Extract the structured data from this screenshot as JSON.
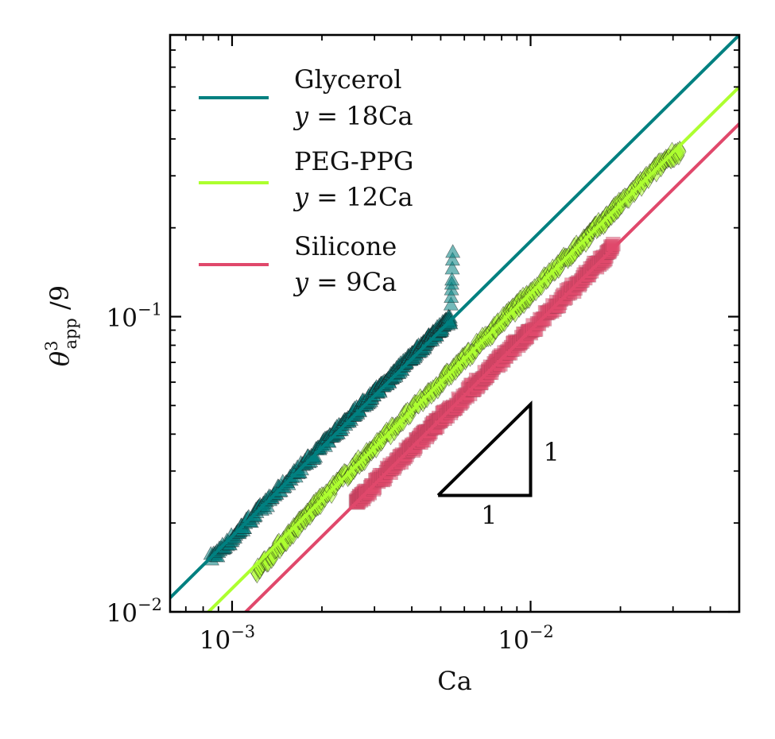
{
  "chart_data": {
    "type": "scatter",
    "title": "",
    "xlabel": "Ca",
    "ylabel": {
      "symbol": "θ",
      "sup": "3",
      "sub": "app",
      "suffix": " /9"
    },
    "xscale": "log",
    "yscale": "log",
    "xlim": [
      0.00062,
      0.05
    ],
    "ylim": [
      0.01,
      0.9
    ],
    "xticks": [
      {
        "value": 0.001,
        "base": "10",
        "exp": "−3"
      },
      {
        "value": 0.01,
        "base": "10",
        "exp": "−2"
      }
    ],
    "yticks": [
      {
        "value": 0.01,
        "base": "10",
        "exp": "−2"
      },
      {
        "value": 0.1,
        "base": "10",
        "exp": "−1"
      }
    ],
    "grid": false,
    "legend_position": "top-left",
    "series": [
      {
        "name": "Glycerol",
        "fit_label": {
          "y": "y",
          "eq": " = 18Ca"
        },
        "fit_coefficient": 18,
        "color": "#008080",
        "marker": "triangle",
        "x_range": [
          0.00085,
          0.0055
        ],
        "points": [
          [
            0.00085,
            0.0153
          ],
          [
            0.0009,
            0.016
          ],
          [
            0.00095,
            0.0168
          ],
          [
            0.001,
            0.0178
          ],
          [
            0.00105,
            0.0187
          ],
          [
            0.0011,
            0.0197
          ],
          [
            0.00118,
            0.0213
          ],
          [
            0.00125,
            0.0225
          ],
          [
            0.00132,
            0.0237
          ],
          [
            0.0014,
            0.0253
          ],
          [
            0.0015,
            0.0272
          ],
          [
            0.0016,
            0.029
          ],
          [
            0.0017,
            0.031
          ],
          [
            0.0018,
            0.0328
          ],
          [
            0.0019,
            0.0345
          ],
          [
            0.002,
            0.0365
          ],
          [
            0.0021,
            0.0385
          ],
          [
            0.0022,
            0.0405
          ],
          [
            0.0023,
            0.0423
          ],
          [
            0.0024,
            0.0443
          ],
          [
            0.0025,
            0.046
          ],
          [
            0.0026,
            0.048
          ],
          [
            0.0027,
            0.0498
          ],
          [
            0.0028,
            0.0515
          ],
          [
            0.0029,
            0.0533
          ],
          [
            0.003,
            0.0552
          ],
          [
            0.0031,
            0.057
          ],
          [
            0.0032,
            0.0588
          ],
          [
            0.0033,
            0.0605
          ],
          [
            0.0034,
            0.0625
          ],
          [
            0.0035,
            0.0643
          ],
          [
            0.0036,
            0.0662
          ],
          [
            0.0037,
            0.068
          ],
          [
            0.0038,
            0.07
          ],
          [
            0.0039,
            0.0718
          ],
          [
            0.004,
            0.0737
          ],
          [
            0.0041,
            0.0755
          ],
          [
            0.0042,
            0.0773
          ],
          [
            0.0043,
            0.0792
          ],
          [
            0.0044,
            0.081
          ],
          [
            0.0045,
            0.0828
          ],
          [
            0.0046,
            0.0847
          ],
          [
            0.0047,
            0.0865
          ],
          [
            0.0048,
            0.0883
          ],
          [
            0.0049,
            0.0902
          ],
          [
            0.005,
            0.092
          ],
          [
            0.0051,
            0.094
          ],
          [
            0.0052,
            0.0958
          ],
          [
            0.0053,
            0.0976
          ],
          [
            0.0054,
            0.0995
          ],
          [
            0.0055,
            0.176
          ]
        ]
      },
      {
        "name": "PEG-PPG",
        "fit_label": {
          "y": "y",
          "eq": " = 12Ca"
        },
        "fit_coefficient": 12,
        "color": "#adff2f",
        "marker": "diamond",
        "x_range": [
          0.0012,
          0.032
        ],
        "points": [
          [
            0.0012,
            0.0138
          ],
          [
            0.0013,
            0.0148
          ],
          [
            0.0014,
            0.0162
          ],
          [
            0.0015,
            0.0175
          ],
          [
            0.0016,
            0.0188
          ],
          [
            0.0017,
            0.0201
          ],
          [
            0.0018,
            0.0214
          ],
          [
            0.0019,
            0.0228
          ],
          [
            0.002,
            0.024
          ],
          [
            0.0022,
            0.0265
          ],
          [
            0.0024,
            0.029
          ],
          [
            0.0026,
            0.0313
          ],
          [
            0.0028,
            0.0337
          ],
          [
            0.003,
            0.0362
          ],
          [
            0.0033,
            0.0398
          ],
          [
            0.0036,
            0.0434
          ],
          [
            0.004,
            0.048
          ],
          [
            0.0044,
            0.0528
          ],
          [
            0.0048,
            0.0575
          ],
          [
            0.0052,
            0.0623
          ],
          [
            0.0056,
            0.067
          ],
          [
            0.006,
            0.0718
          ],
          [
            0.0065,
            0.078
          ],
          [
            0.007,
            0.084
          ],
          [
            0.0075,
            0.09
          ],
          [
            0.008,
            0.0963
          ],
          [
            0.0085,
            0.1022
          ],
          [
            0.009,
            0.108
          ],
          [
            0.0095,
            0.114
          ],
          [
            0.01,
            0.12
          ],
          [
            0.011,
            0.132
          ],
          [
            0.012,
            0.144
          ],
          [
            0.013,
            0.156
          ],
          [
            0.014,
            0.168
          ],
          [
            0.015,
            0.18
          ],
          [
            0.016,
            0.192
          ],
          [
            0.017,
            0.204
          ],
          [
            0.018,
            0.216
          ],
          [
            0.019,
            0.228
          ],
          [
            0.02,
            0.24
          ],
          [
            0.022,
            0.264
          ],
          [
            0.024,
            0.288
          ],
          [
            0.026,
            0.312
          ],
          [
            0.028,
            0.336
          ],
          [
            0.03,
            0.355
          ],
          [
            0.032,
            0.362
          ]
        ]
      },
      {
        "name": "Silicone",
        "fit_label": {
          "y": "y",
          "eq": " = 9Ca"
        },
        "fit_coefficient": 9,
        "color": "#e0486b",
        "marker": "square",
        "x_range": [
          0.0026,
          0.019
        ],
        "points": [
          [
            0.0026,
            0.0232
          ],
          [
            0.0027,
            0.0242
          ],
          [
            0.0028,
            0.0252
          ],
          [
            0.003,
            0.027
          ],
          [
            0.0032,
            0.0288
          ],
          [
            0.0034,
            0.0306
          ],
          [
            0.0036,
            0.0324
          ],
          [
            0.0038,
            0.0342
          ],
          [
            0.004,
            0.036
          ],
          [
            0.0042,
            0.0378
          ],
          [
            0.0044,
            0.0396
          ],
          [
            0.0046,
            0.0414
          ],
          [
            0.0048,
            0.0432
          ],
          [
            0.005,
            0.045
          ],
          [
            0.0053,
            0.0477
          ],
          [
            0.0056,
            0.0504
          ],
          [
            0.006,
            0.054
          ],
          [
            0.0064,
            0.0576
          ],
          [
            0.0068,
            0.0612
          ],
          [
            0.0072,
            0.0648
          ],
          [
            0.0076,
            0.0684
          ],
          [
            0.008,
            0.072
          ],
          [
            0.0085,
            0.0765
          ],
          [
            0.009,
            0.081
          ],
          [
            0.0095,
            0.0855
          ],
          [
            0.01,
            0.09
          ],
          [
            0.011,
            0.099
          ],
          [
            0.012,
            0.108
          ],
          [
            0.013,
            0.117
          ],
          [
            0.014,
            0.126
          ],
          [
            0.015,
            0.135
          ],
          [
            0.016,
            0.144
          ],
          [
            0.017,
            0.153
          ],
          [
            0.018,
            0.162
          ],
          [
            0.019,
            0.171
          ]
        ]
      }
    ],
    "annotations": {
      "slope_triangle": {
        "x0": 0.0049,
        "x1": 0.01,
        "y0": 0.0248,
        "y1": 0.0505,
        "run_label": "1",
        "rise_label": "1"
      }
    }
  }
}
